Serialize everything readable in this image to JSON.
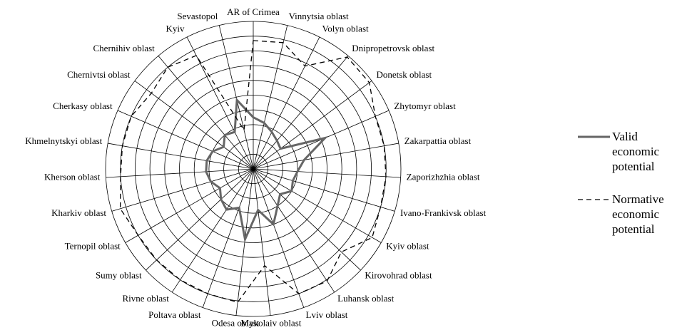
{
  "chart_data": {
    "type": "radar",
    "categories": [
      "AR of Crimea",
      "Vinnytsia oblast",
      "Volyn oblast",
      "Dnipropetrovsk oblast",
      "Donetsk oblast",
      "Zhytomyr oblast",
      "Zakarpattia oblast",
      "Zaporizhzhia oblast",
      "Ivano-Frankivsk oblast",
      "Kyiv oblast",
      "Kirovohrad oblast",
      "Luhansk oblast",
      "Lviv oblast",
      "Mykolaiv oblast",
      "Odesa oblast",
      "Poltava oblast",
      "Rivne oblast",
      "Sumy oblast",
      "Ternopil oblast",
      "Kharkiv oblast",
      "Kherson oblast",
      "Khmelnytskyi oblast",
      "Cherkasy oblast",
      "Chernivtsi oblast",
      "Chernihiv oblast",
      "Kyiv",
      "Sevastopol"
    ],
    "series": [
      {
        "name": "Valid economic potential",
        "color": "#666666",
        "dash": "solid",
        "values": [
          3.5,
          3.2,
          2.8,
          2.5,
          2.3,
          5.3,
          3.5,
          3.0,
          2.8,
          3.0,
          2.5,
          3.0,
          4.0,
          2.8,
          4.8,
          2.8,
          3.3,
          3.0,
          2.6,
          3.0,
          3.2,
          3.2,
          3.0,
          2.5,
          3.0,
          2.8,
          4.8
        ]
      },
      {
        "name": "Normative economic potential",
        "color": "#000000",
        "dash": "dashed",
        "values": [
          8.7,
          8.8,
          7.8,
          9.9,
          9.8,
          9.0,
          9.0,
          9.0,
          9.0,
          9.3,
          8.2,
          9.1,
          9.0,
          6.6,
          9.1,
          9.0,
          9.0,
          9.0,
          9.0,
          9.4,
          9.0,
          9.0,
          9.0,
          8.6,
          9.0,
          8.6,
          2.7
        ]
      }
    ],
    "ylim": [
      0,
      10
    ],
    "yticks": [
      1,
      2,
      3,
      4,
      5,
      6,
      7,
      8,
      9,
      10
    ],
    "grid": true,
    "legend": "right"
  }
}
